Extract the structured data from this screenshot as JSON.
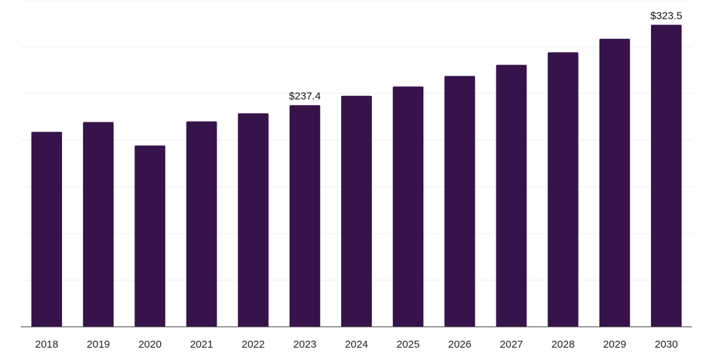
{
  "colors": {
    "bar": "#36134a",
    "grid": "#efefef",
    "axis": "#333333",
    "text": "#222222"
  },
  "chart_data": {
    "type": "bar",
    "title": "",
    "xlabel": "",
    "ylabel": "",
    "categories": [
      "2018",
      "2019",
      "2020",
      "2021",
      "2022",
      "2023",
      "2024",
      "2025",
      "2026",
      "2027",
      "2028",
      "2029",
      "2030"
    ],
    "values": [
      208.8,
      219.3,
      194.2,
      220.0,
      228.6,
      237.4,
      247.4,
      257.4,
      268.6,
      280.6,
      294.0,
      308.5,
      323.5
    ],
    "data_labels": [
      {
        "category": "2023",
        "text": "$237.4"
      },
      {
        "category": "2030",
        "text": "$323.5"
      }
    ],
    "ylim": [
      0,
      350
    ],
    "grid": true,
    "legend": "none"
  }
}
